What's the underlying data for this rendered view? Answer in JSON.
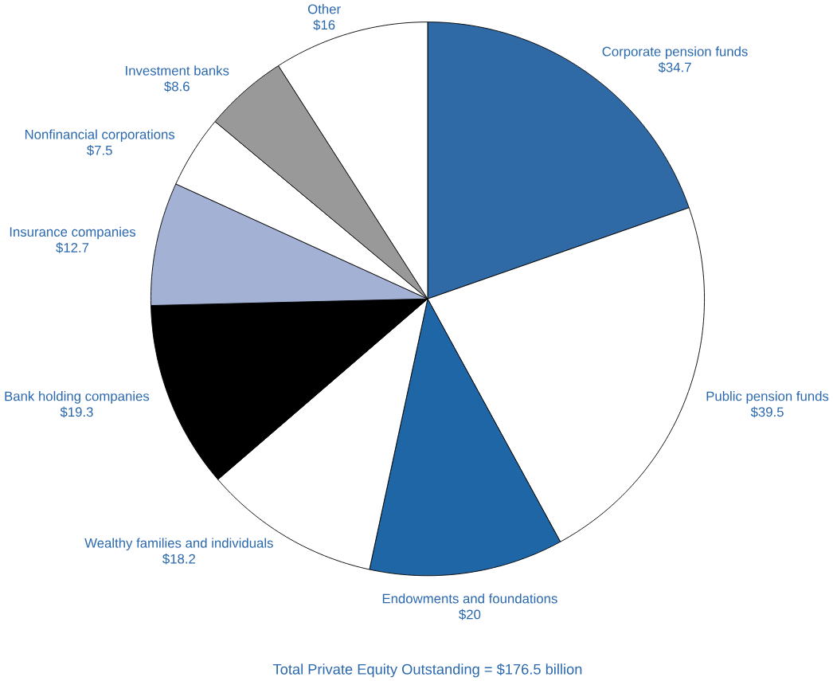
{
  "chart_data": {
    "type": "pie",
    "categories": [
      "Corporate pension funds",
      "Public pension funds",
      "Endowments and foundations",
      "Wealthy families and individuals",
      "Bank holding companies",
      "Insurance companies",
      "Nonfinancial corporations",
      "Investment banks",
      "Other"
    ],
    "values": [
      34.7,
      39.5,
      20,
      18.2,
      19.3,
      12.7,
      7.5,
      8.6,
      16
    ],
    "colors": [
      "#2f6aa6",
      "#ffffff",
      "#1f66a6",
      "#ffffff",
      "#000000",
      "#a3b1d4",
      "#ffffff",
      "#999999",
      "#ffffff"
    ],
    "value_labels": [
      "$34.7",
      "$39.5",
      "$20",
      "$18.2",
      "$19.3",
      "$12.7",
      "$7.5",
      "$8.6",
      "$16"
    ],
    "annotations": [
      "Total Private Equity Outstanding = $176.5 billion"
    ]
  }
}
